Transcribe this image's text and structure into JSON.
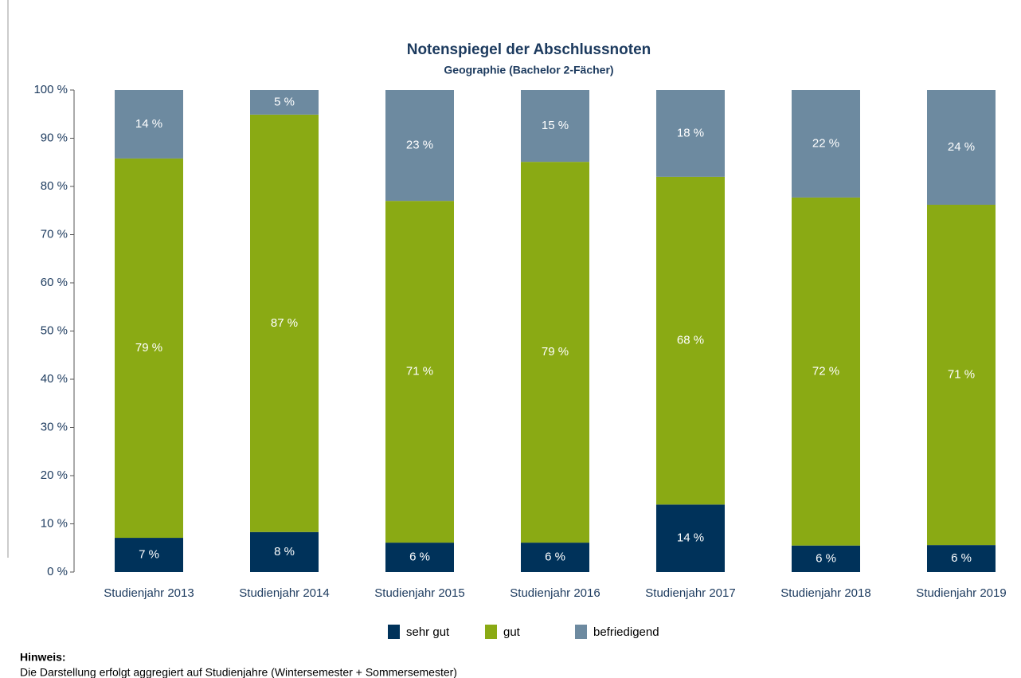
{
  "chart_data": {
    "type": "stacked_bar",
    "title": "Notenspiegel der Abschlussnoten",
    "subtitle": "Geographie (Bachelor 2-Fächer)",
    "categories": [
      "Studienjahr 2013",
      "Studienjahr 2014",
      "Studienjahr 2015",
      "Studienjahr 2016",
      "Studienjahr 2017",
      "Studienjahr 2018",
      "Studienjahr 2019"
    ],
    "series": [
      {
        "name": "sehr gut",
        "color": "#00325a",
        "values": [
          7.1,
          8.3,
          6.1,
          6.1,
          14.0,
          5.5,
          5.6
        ],
        "value_labels": [
          "7 %",
          "8 %",
          "6 %",
          "6 %",
          "14 %",
          "6 %",
          "6 %"
        ]
      },
      {
        "name": "gut",
        "color": "#8aaa14",
        "values": [
          78.7,
          86.6,
          70.9,
          79.0,
          68.0,
          72.2,
          70.6
        ],
        "value_labels": [
          "79 %",
          "87 %",
          "71 %",
          "79 %",
          "68 %",
          "72 %",
          "71 %"
        ]
      },
      {
        "name": "befriedigend",
        "color": "#6d8aa0",
        "values": [
          14.2,
          5.1,
          23.0,
          14.9,
          18.0,
          22.3,
          23.8
        ],
        "value_labels": [
          "14 %",
          "5 %",
          "23 %",
          "15 %",
          "18 %",
          "22 %",
          "24 %"
        ]
      }
    ],
    "ylim": [
      0,
      100
    ],
    "yticks": [
      {
        "value": 0,
        "label": "0 %"
      },
      {
        "value": 10,
        "label": "10 %"
      },
      {
        "value": 20,
        "label": "20 %"
      },
      {
        "value": 30,
        "label": "30 %"
      },
      {
        "value": 40,
        "label": "40 %"
      },
      {
        "value": 50,
        "label": "50 %"
      },
      {
        "value": 60,
        "label": "60 %"
      },
      {
        "value": 70,
        "label": "70 %"
      },
      {
        "value": 80,
        "label": "80 %"
      },
      {
        "value": 90,
        "label": "90 %"
      },
      {
        "value": 100,
        "label": "100 %"
      }
    ],
    "legend": "bottom",
    "note_title": "Hinweis:",
    "note": "Die Darstellung erfolgt aggregiert auf Studienjahre (Wintersemester + Sommersemester)"
  }
}
